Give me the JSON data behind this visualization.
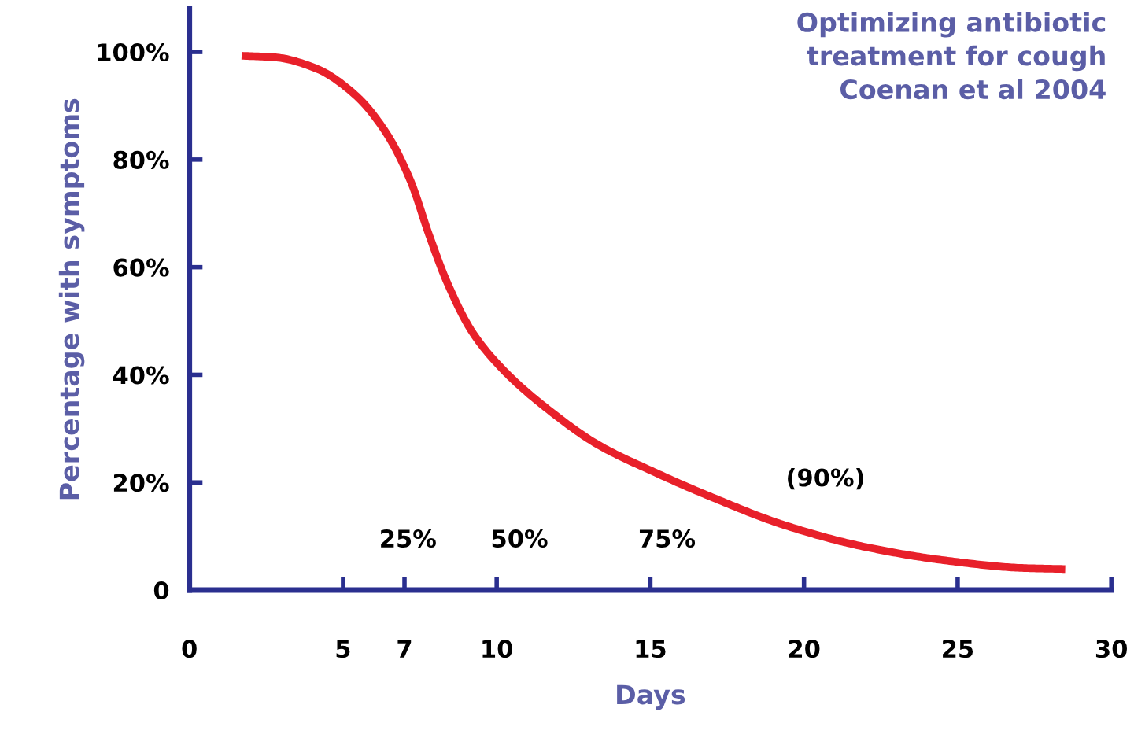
{
  "chart_data": {
    "type": "line",
    "title": "Optimizing antibiotic\ntreatment for cough\nCoenan et al 2004",
    "xlabel": "Days",
    "ylabel": "Percentage with symptoms",
    "series": [
      {
        "color": "#e8202a",
        "x": [
          1.7,
          2.8,
          4.1,
          5.4,
          6.4,
          7.2,
          7.8,
          8.4,
          9.2,
          10.2,
          11.8,
          13.3,
          15.1,
          16.9,
          19.4,
          22,
          24.6,
          27.1,
          28.5
        ],
        "values": [
          99.3,
          99,
          97,
          92,
          85,
          76,
          66,
          57,
          48,
          41,
          33,
          27,
          22,
          17.5,
          12,
          8,
          5.5,
          4.1,
          3.9
        ]
      }
    ],
    "xlim": [
      0,
      30
    ],
    "xticks": [
      0,
      5,
      7,
      10,
      15,
      20,
      25,
      30
    ],
    "ylim": [
      0,
      108
    ],
    "yticks": [
      0,
      {
        "value": 20,
        "label": "20%"
      },
      {
        "value": 40,
        "label": "40%"
      },
      {
        "value": 60,
        "label": "60%"
      },
      {
        "value": 80,
        "label": "80%"
      },
      {
        "value": 100,
        "label": "100%"
      }
    ],
    "annotations": [
      "25%",
      "50%",
      "75%",
      "(90%)"
    ],
    "grid": false,
    "legend": false,
    "marker": "none",
    "line_style": "solid"
  }
}
